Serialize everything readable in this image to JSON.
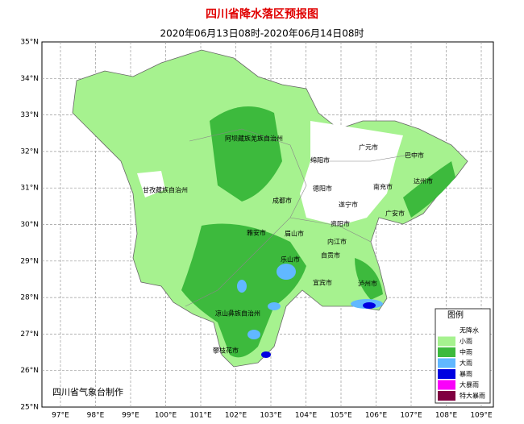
{
  "header": {
    "title": "四川省降水落区预报图",
    "subtitle": "2020年06月13日08时-2020年06月14日08时"
  },
  "lat_labels": [
    "35°N",
    "34°N",
    "33°N",
    "32°N",
    "31°N",
    "30°N",
    "29°N",
    "28°N",
    "27°N",
    "26°N",
    "25°N"
  ],
  "lon_labels": [
    "97°E",
    "98°E",
    "99°E",
    "100°E",
    "101°E",
    "102°E",
    "103°E",
    "104°E",
    "105°E",
    "106°E",
    "107°E",
    "108°E",
    "109°E"
  ],
  "places": [
    "广元市",
    "巴中市",
    "绵阳市",
    "阿坝藏族羌族自治州",
    "甘孜藏族自治州",
    "德阳市",
    "南充市",
    "达州市",
    "成都市",
    "遂宁市",
    "广安市",
    "资阳市",
    "雅安市",
    "眉山市",
    "内江市",
    "乐山市",
    "自贡市",
    "宜宾市",
    "泸州市",
    "凉山彝族自治州",
    "攀枝花市"
  ],
  "legend": {
    "title": "图例",
    "items": [
      {
        "label": "无降水",
        "color": "#ffffff"
      },
      {
        "label": "小雨",
        "color": "#a6f28f"
      },
      {
        "label": "中雨",
        "color": "#3dba3d"
      },
      {
        "label": "大雨",
        "color": "#61b8ff"
      },
      {
        "label": "暴雨",
        "color": "#0000e1"
      },
      {
        "label": "大暴雨",
        "color": "#fa00fa"
      },
      {
        "label": "特大暴雨",
        "color": "#800040"
      }
    ]
  },
  "credit": "四川省气象台制作"
}
